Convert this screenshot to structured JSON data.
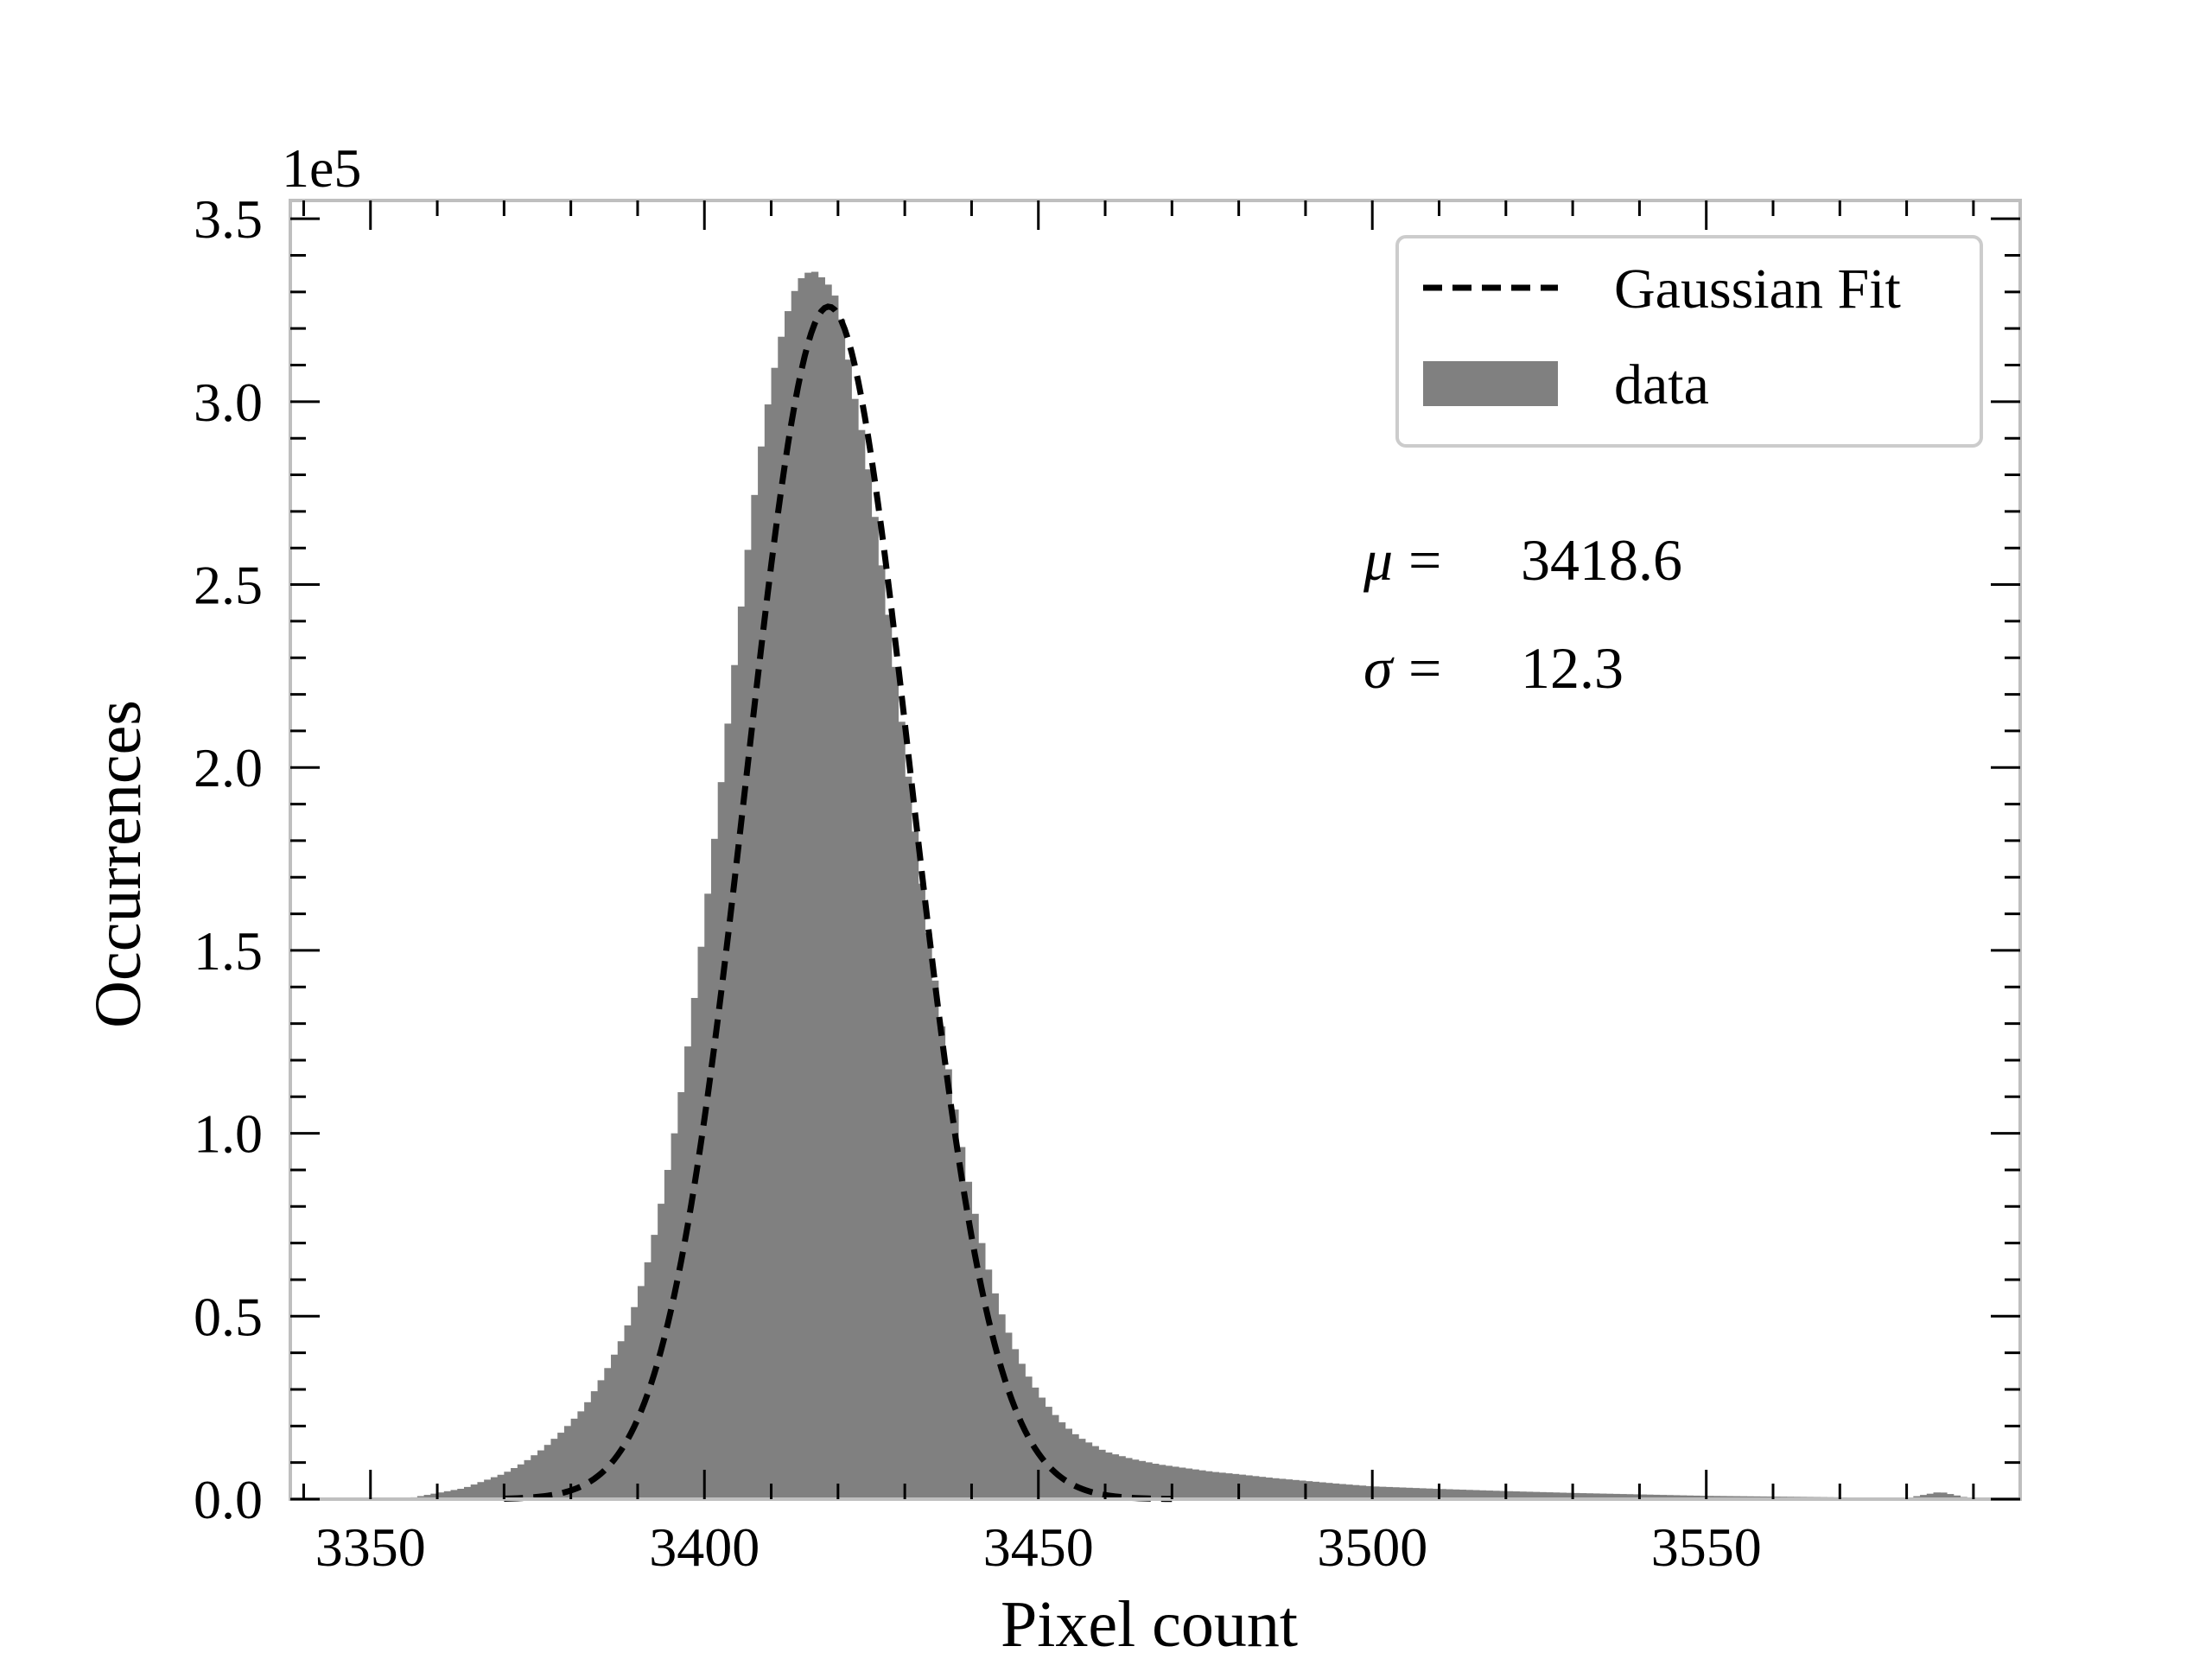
{
  "chart_data": {
    "type": "bar",
    "title": "",
    "xlabel": "Pixel count",
    "ylabel": "Occurrences",
    "y_multiplier_label": "1e5",
    "xlim": [
      3338,
      3597
    ],
    "ylim": [
      0,
      3.55
    ],
    "x_ticks": [
      3350,
      3400,
      3450,
      3500,
      3550
    ],
    "x_tick_labels": [
      "3350",
      "3400",
      "3450",
      "3500",
      "3550"
    ],
    "y_ticks": [
      0,
      0.5,
      1.0,
      1.5,
      2.0,
      2.5,
      3.0,
      3.5
    ],
    "y_tick_labels": [
      "0.0",
      "0.5",
      "1.0",
      "1.5",
      "2.0",
      "2.5",
      "3.0",
      "3.5"
    ],
    "grid": false,
    "legend_position": "top-right",
    "colors": {
      "histogram": "#808080",
      "fit": "#000000",
      "frame": "#bfbfbf"
    },
    "histogram": {
      "name": "data",
      "bin_width": 1,
      "bins_x": [
        3355,
        3358,
        3361,
        3364,
        3367,
        3370,
        3373,
        3376,
        3379,
        3382,
        3385,
        3388,
        3390,
        3392,
        3394,
        3396,
        3398,
        3400,
        3402,
        3404,
        3406,
        3408,
        3410,
        3412,
        3414,
        3416,
        3417,
        3418,
        3419,
        3420,
        3421,
        3422,
        3424,
        3426,
        3428,
        3430,
        3432,
        3434,
        3436,
        3438,
        3440,
        3442,
        3444,
        3446,
        3448,
        3450,
        3452,
        3454,
        3456,
        3458,
        3460,
        3464,
        3468,
        3472,
        3476,
        3480,
        3485,
        3490,
        3495,
        3500,
        3510,
        3520,
        3530,
        3540,
        3550,
        3560,
        3570,
        3580,
        3585,
        3590
      ],
      "bins_y": [
        0,
        0.01,
        0.02,
        0.03,
        0.05,
        0.07,
        0.1,
        0.14,
        0.19,
        0.25,
        0.34,
        0.45,
        0.55,
        0.68,
        0.85,
        1.05,
        1.3,
        1.58,
        1.88,
        2.2,
        2.52,
        2.82,
        3.05,
        3.22,
        3.33,
        3.36,
        3.35,
        3.33,
        3.31,
        3.27,
        3.18,
        3.05,
        2.88,
        2.62,
        2.35,
        2.05,
        1.75,
        1.48,
        1.23,
        1.01,
        0.82,
        0.66,
        0.53,
        0.43,
        0.35,
        0.29,
        0.24,
        0.2,
        0.17,
        0.15,
        0.13,
        0.11,
        0.095,
        0.085,
        0.075,
        0.068,
        0.058,
        0.05,
        0.042,
        0.035,
        0.028,
        0.022,
        0.017,
        0.013,
        0.009,
        0.007,
        0.005,
        0.003,
        0.02,
        0.0
      ]
    },
    "fit": {
      "name": "Gaussian Fit",
      "mu": 3418.6,
      "sigma": 12.3,
      "amplitude": 3.26,
      "x_range": [
        3370,
        3470
      ]
    },
    "annotations": {
      "mu_symbol": "μ",
      "mu_equals": "=",
      "mu_value": "3418.6",
      "sigma_symbol": "σ",
      "sigma_equals": "=",
      "sigma_value": "12.3"
    }
  }
}
